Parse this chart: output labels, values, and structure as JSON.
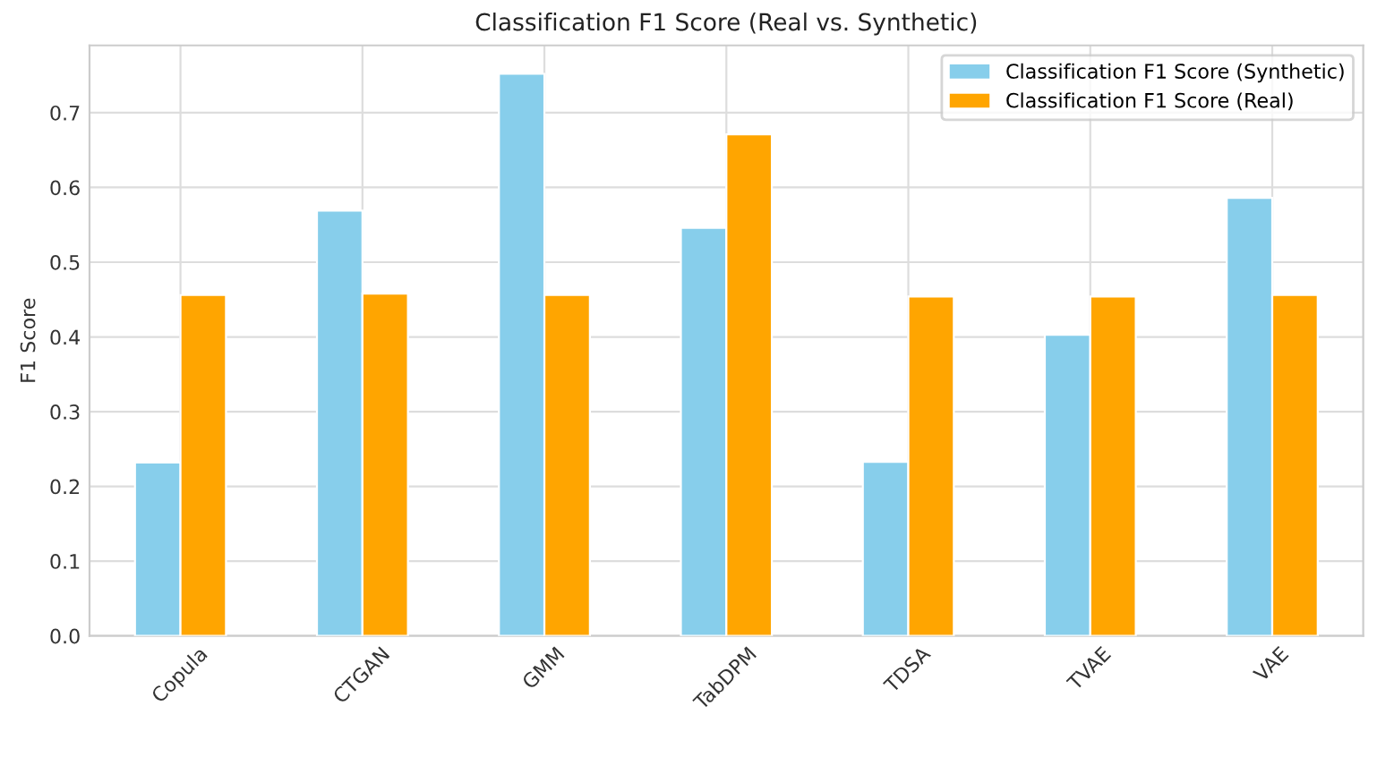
{
  "chart_data": {
    "type": "bar",
    "title": "Classification F1 Score (Real vs. Synthetic)",
    "ylabel": "F1 Score",
    "categories": [
      "Copula",
      "CTGAN",
      "GMM",
      "TabDPM",
      "TDSA",
      "TVAE",
      "VAE"
    ],
    "series": [
      {
        "name": "Classification F1 Score (Synthetic)",
        "color": "#87ceeb",
        "values": [
          0.232,
          0.569,
          0.752,
          0.546,
          0.233,
          0.403,
          0.586
        ]
      },
      {
        "name": "Classification F1 Score (Real)",
        "color": "#ffa500",
        "values": [
          0.456,
          0.458,
          0.456,
          0.671,
          0.454,
          0.454,
          0.456
        ]
      }
    ],
    "ylim": [
      0,
      0.79
    ],
    "yticks": [
      {
        "value": 0,
        "label": "0.0"
      },
      0.1,
      0.2,
      0.3,
      0.4,
      0.5,
      0.6,
      0.7
    ],
    "grid": true,
    "legend": "top right"
  }
}
